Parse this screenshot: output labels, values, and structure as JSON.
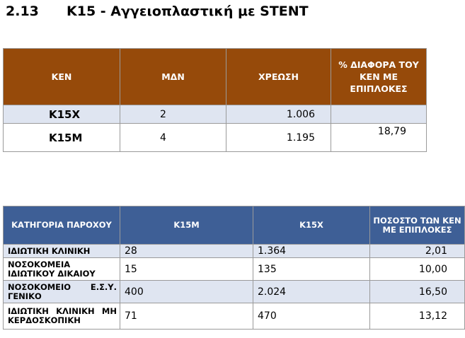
{
  "heading": {
    "number": "2.13",
    "title": "K15  - Αγγειοπλαστική με STENT"
  },
  "table1": {
    "headers": [
      "ΚΕΝ",
      "ΜΔΝ",
      "ΧΡΕΩΣΗ",
      "% ΔΙΑΦΟΡΑ ΤΟΥ ΚΕΝ ΜΕ ΕΠΙΠΛΟΚΕΣ"
    ],
    "rows": [
      {
        "ken": "K15X",
        "mdn": "2",
        "charge": "1.006",
        "diff": ""
      },
      {
        "ken": "K15M",
        "mdn": "4",
        "charge": "1.195",
        "diff": "18,79"
      }
    ]
  },
  "table2": {
    "headers": [
      "ΚΑΤΗΓΟΡΙΑ ΠΑΡΟΧΟΥ",
      "K15M",
      "K15X",
      "ΠΟΣΟΣΤΟ ΤΩΝ ΚΕΝ ΜΕ ΕΠΙΠΛΟΚΕΣ"
    ],
    "rows": [
      {
        "category": "ΙΔΙΩΤΙΚΗ ΚΛΙΝΙΚΗ",
        "k15m": "28",
        "k15x": "1.364",
        "pct": "2,01"
      },
      {
        "category": "ΝΟΣΟΚΟΜΕΙΑ ΙΔΙΩΤΙΚΟΥ ΔΙΚΑΙΟΥ",
        "k15m": "15",
        "k15x": "135",
        "pct": "10,00"
      },
      {
        "category": "ΝΟΣΟΚΟΜΕΙΟ Ε.Σ.Υ. ΓΕΝΙΚΟ",
        "k15m": "400",
        "k15x": "2.024",
        "pct": "16,50"
      },
      {
        "category": "ΙΔΙΩΤΙΚΗ ΚΛΙΝΙΚΗ ΜΗ ΚΕΡΔΟΣΚΟΠΙΚΗ",
        "k15m": "71",
        "k15x": "470",
        "pct": "13,12"
      }
    ]
  },
  "colors": {
    "table1_header": "#964a0a",
    "table2_header": "#3e5f96",
    "row_shade": "#dfe5f1"
  }
}
